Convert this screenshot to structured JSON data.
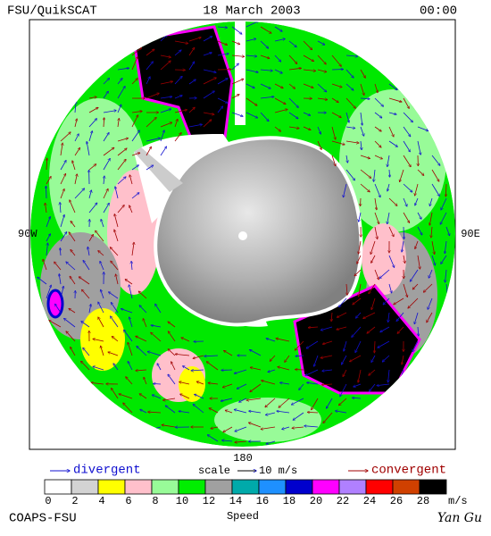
{
  "header": {
    "left": "FSU/QuikSCAT",
    "center": "18 March 2003",
    "right": "00:00"
  },
  "map": {
    "west": "90W",
    "east": "90E",
    "south": "180"
  },
  "legend": {
    "divergent": "divergent",
    "scale": "scale",
    "scale_value": "10 m/s",
    "convergent": "convergent"
  },
  "colorbar": {
    "colors": [
      "#ffffff",
      "#d3d3d3",
      "#ffff00",
      "#ffc0cb",
      "#98fb98",
      "#00ee00",
      "#a0a0a0",
      "#00aaaa",
      "#1e90ff",
      "#0000cd",
      "#ff00ff",
      "#b080ff",
      "#ff0000",
      "#d04000",
      "#000000"
    ],
    "labels": [
      0,
      2,
      4,
      6,
      8,
      10,
      12,
      14,
      16,
      18,
      20,
      22,
      24,
      26,
      28
    ],
    "unit": "m/s",
    "title": "Speed"
  },
  "footer": {
    "left": "COAPS-FSU",
    "right": "Yan Gu"
  }
}
